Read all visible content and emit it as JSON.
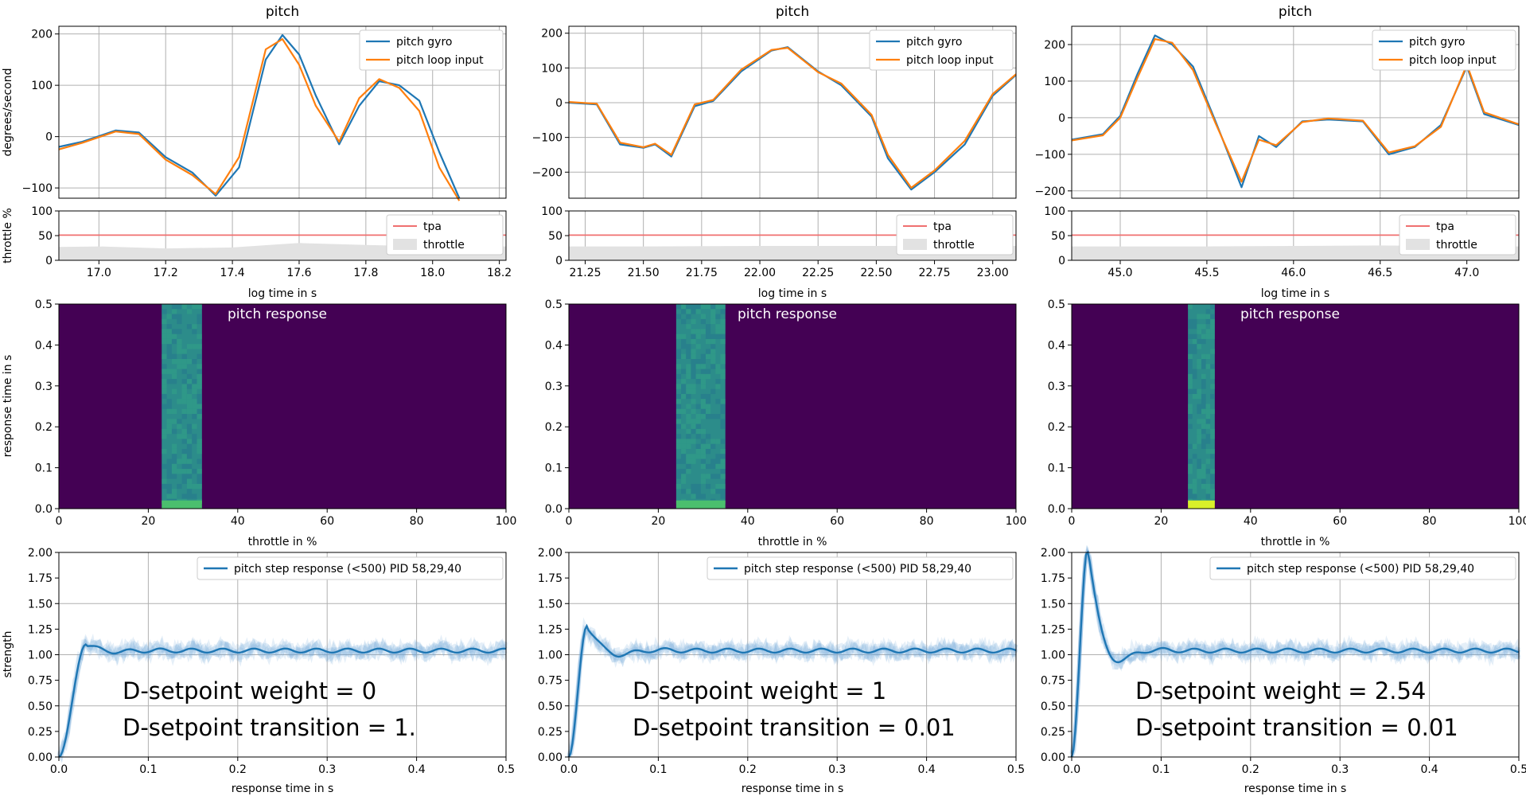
{
  "colors": {
    "gyro": "#1f77b4",
    "loop_input": "#ff7f0e",
    "tpa": "#f07070",
    "throttle_fill": "#e2e2e2",
    "heatmap_bg": "#440154",
    "heatmap_band": "#2c8c8a",
    "heatmap_hot": "#d9f02a",
    "grid": "#b0b0b0"
  },
  "labels": {
    "pitch_title": "pitch",
    "ylabel_rate": "degrees/second",
    "ylabel_throttle": "throttle %",
    "xlabel_time": "log time in s",
    "ylabel_response": "response time in s",
    "xlabel_throttle": "throttle in %",
    "heatmap_title": "pitch response",
    "ylabel_strength": "strength",
    "xlabel_response": "response time in s",
    "legend_gyro": "pitch gyro",
    "legend_loop": "pitch loop input",
    "legend_tpa": "tpa",
    "legend_throttle": "throttle",
    "legend_step": "pitch step response (<500)  PID 58,29,40"
  },
  "chart_data": [
    {
      "type": "line",
      "column": 0,
      "title": "pitch",
      "xlim": [
        16.88,
        18.22
      ],
      "ylim": [
        -120,
        215
      ],
      "xticks": [
        "17.0",
        "17.2",
        "17.4",
        "17.6",
        "17.8",
        "18.0",
        "18.2"
      ],
      "xtick_values": [
        17.0,
        17.2,
        17.4,
        17.6,
        17.8,
        18.0,
        18.2
      ],
      "yticks": [
        "200",
        "100",
        "0",
        "−100"
      ],
      "ytick_values": [
        200,
        100,
        0,
        -100
      ],
      "series": [
        {
          "name": "pitch gyro",
          "x": [
            16.88,
            16.95,
            17.05,
            17.12,
            17.2,
            17.28,
            17.35,
            17.42,
            17.5,
            17.55,
            17.6,
            17.65,
            17.72,
            17.78,
            17.84,
            17.9,
            17.96,
            18.02,
            18.08
          ],
          "y": [
            -20,
            -10,
            12,
            8,
            -40,
            -70,
            -115,
            -60,
            150,
            198,
            160,
            80,
            -15,
            60,
            108,
            100,
            70,
            -30,
            -120
          ]
        },
        {
          "name": "pitch loop input",
          "x": [
            16.88,
            16.95,
            17.05,
            17.12,
            17.2,
            17.28,
            17.35,
            17.42,
            17.5,
            17.55,
            17.6,
            17.65,
            17.72,
            17.78,
            17.84,
            17.9,
            17.96,
            18.02,
            18.08
          ],
          "y": [
            -25,
            -12,
            10,
            5,
            -45,
            -75,
            -112,
            -40,
            170,
            190,
            140,
            60,
            -10,
            75,
            112,
            95,
            50,
            -60,
            -125
          ]
        }
      ],
      "throttle": {
        "xlim": [
          16.88,
          18.22
        ],
        "tpa": 51,
        "x": [
          16.88,
          17.0,
          17.2,
          17.4,
          17.6,
          17.8,
          18.0,
          18.22
        ],
        "y": [
          27,
          28,
          24,
          26,
          35,
          31,
          28,
          28
        ]
      },
      "heatmap": {
        "band_from": 23,
        "band_to": 32,
        "hot": false
      },
      "step": {
        "peak": 1.1,
        "peak_t": 0.03,
        "overshoot": "low"
      },
      "annotation": [
        "D-setpoint weight = 0",
        "D-setpoint transition = 1."
      ]
    },
    {
      "type": "line",
      "column": 1,
      "title": "pitch",
      "xlim": [
        21.18,
        23.1
      ],
      "ylim": [
        -275,
        220
      ],
      "xticks": [
        "21.25",
        "21.50",
        "21.75",
        "22.00",
        "22.25",
        "22.50",
        "22.75",
        "23.00"
      ],
      "xtick_values": [
        21.25,
        21.5,
        21.75,
        22.0,
        22.25,
        22.5,
        22.75,
        23.0
      ],
      "yticks": [
        "200",
        "100",
        "0",
        "−100",
        "−200"
      ],
      "ytick_values": [
        200,
        100,
        0,
        -100,
        -200
      ],
      "series": [
        {
          "name": "pitch gyro",
          "x": [
            21.18,
            21.3,
            21.4,
            21.5,
            21.55,
            21.62,
            21.72,
            21.8,
            21.92,
            22.05,
            22.12,
            22.25,
            22.35,
            22.48,
            22.55,
            22.65,
            22.75,
            22.88,
            23.0,
            23.1
          ],
          "y": [
            0,
            -5,
            -120,
            -130,
            -120,
            -155,
            -10,
            5,
            90,
            150,
            160,
            90,
            50,
            -40,
            -160,
            -250,
            -200,
            -120,
            20,
            80
          ]
        },
        {
          "name": "pitch loop input",
          "x": [
            21.18,
            21.3,
            21.4,
            21.5,
            21.55,
            21.62,
            21.72,
            21.8,
            21.92,
            22.05,
            22.12,
            22.25,
            22.35,
            22.48,
            22.55,
            22.65,
            22.75,
            22.88,
            23.0,
            23.1
          ],
          "y": [
            2,
            -3,
            -115,
            -128,
            -118,
            -150,
            -5,
            8,
            95,
            152,
            158,
            88,
            55,
            -35,
            -150,
            -245,
            -195,
            -110,
            25,
            82
          ]
        }
      ],
      "throttle": {
        "xlim": [
          21.18,
          23.1
        ],
        "tpa": 51,
        "x": [
          21.18,
          21.5,
          22.0,
          22.5,
          23.1
        ],
        "y": [
          28,
          28,
          29,
          29,
          29
        ]
      },
      "heatmap": {
        "band_from": 24,
        "band_to": 35,
        "hot": false
      },
      "step": {
        "peak": 1.28,
        "peak_t": 0.02,
        "overshoot": "mid"
      },
      "annotation": [
        "D-setpoint weight = 1",
        "D-setpoint transition = 0.01"
      ]
    },
    {
      "type": "line",
      "column": 2,
      "title": "pitch",
      "xlim": [
        44.72,
        47.3
      ],
      "ylim": [
        -220,
        250
      ],
      "xticks": [
        "45.0",
        "45.5",
        "46.0",
        "46.5",
        "47.0"
      ],
      "xtick_values": [
        45.0,
        45.5,
        46.0,
        46.5,
        47.0
      ],
      "yticks": [
        "200",
        "100",
        "0",
        "−100",
        "−200"
      ],
      "ytick_values": [
        200,
        100,
        0,
        -100,
        -200
      ],
      "series": [
        {
          "name": "pitch gyro",
          "x": [
            44.72,
            44.9,
            45.0,
            45.1,
            45.2,
            45.3,
            45.42,
            45.55,
            45.7,
            45.8,
            45.9,
            46.05,
            46.2,
            46.4,
            46.55,
            46.7,
            46.85,
            47.0,
            47.1,
            47.3
          ],
          "y": [
            -60,
            -45,
            5,
            120,
            225,
            200,
            140,
            -10,
            -190,
            -50,
            -80,
            -10,
            -5,
            -10,
            -100,
            -80,
            -20,
            140,
            10,
            -20
          ]
        },
        {
          "name": "pitch loop input",
          "x": [
            44.72,
            44.9,
            45.0,
            45.1,
            45.2,
            45.3,
            45.42,
            45.55,
            45.7,
            45.8,
            45.9,
            46.05,
            46.2,
            46.4,
            46.55,
            46.7,
            46.85,
            47.0,
            47.1,
            47.3
          ],
          "y": [
            -62,
            -48,
            0,
            110,
            215,
            205,
            130,
            -15,
            -175,
            -60,
            -75,
            -12,
            -2,
            -8,
            -95,
            -78,
            -25,
            145,
            15,
            -18
          ]
        }
      ],
      "throttle": {
        "xlim": [
          44.72,
          47.3
        ],
        "tpa": 51,
        "x": [
          44.72,
          45.5,
          46.0,
          46.5,
          47.3
        ],
        "y": [
          28,
          28,
          29,
          30,
          28
        ]
      },
      "heatmap": {
        "band_from": 26,
        "band_to": 32,
        "hot": true
      },
      "step": {
        "peak": 2.05,
        "peak_t": 0.018,
        "overshoot": "high"
      },
      "annotation": [
        "D-setpoint weight = 2.54",
        "D-setpoint transition = 0.01"
      ]
    }
  ],
  "shared_axes": {
    "throttle_ylim": [
      0,
      100
    ],
    "throttle_yticks": [
      "100",
      "50",
      "0"
    ],
    "heatmap_xlim": [
      0,
      100
    ],
    "heatmap_xticks": [
      "0",
      "20",
      "40",
      "60",
      "80",
      "100"
    ],
    "heatmap_ylim": [
      0,
      0.5
    ],
    "heatmap_yticks": [
      "0.5",
      "0.4",
      "0.3",
      "0.2",
      "0.1",
      "0.0"
    ],
    "step_xlim": [
      0,
      0.5
    ],
    "step_xticks": [
      "0.0",
      "0.1",
      "0.2",
      "0.3",
      "0.4",
      "0.5"
    ],
    "step_ylim": [
      0,
      2.0
    ],
    "step_yticks": [
      "2.00",
      "1.75",
      "1.50",
      "1.25",
      "1.00",
      "0.75",
      "0.50",
      "0.25",
      "0.00"
    ]
  }
}
